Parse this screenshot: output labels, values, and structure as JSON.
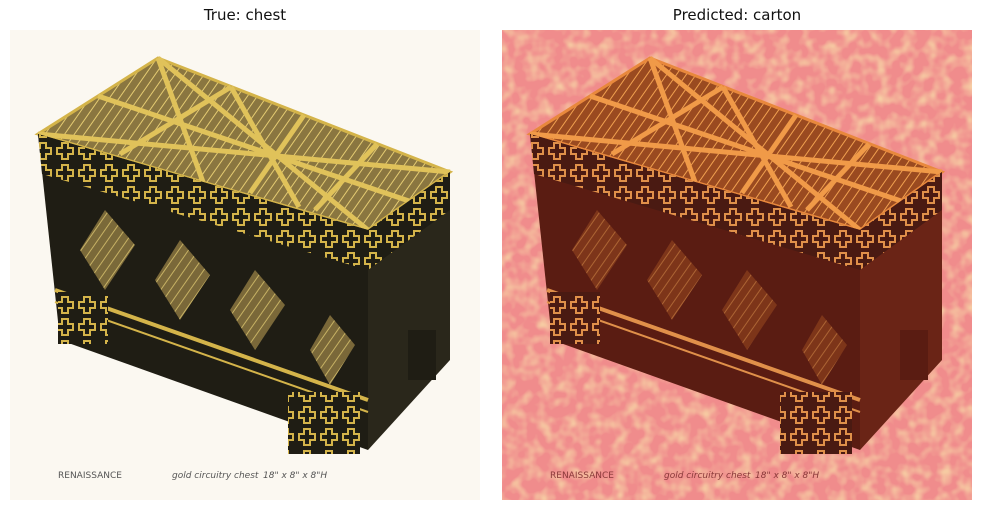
{
  "panels": [
    {
      "title": "True: chest"
    },
    {
      "title": "Predicted: carton"
    }
  ],
  "caption": {
    "brand": "RENAISSANCE",
    "product": "gold circuitry chest",
    "dimensions": "18\" x 8\" x 8\"H"
  },
  "colors": {
    "background_left": "#fbf8f1",
    "chest_dark": "#1f1d14",
    "gold": "#d4b44a",
    "overlay_pink": "#f08c8c",
    "overlay_yellow": "#f3d06a"
  }
}
